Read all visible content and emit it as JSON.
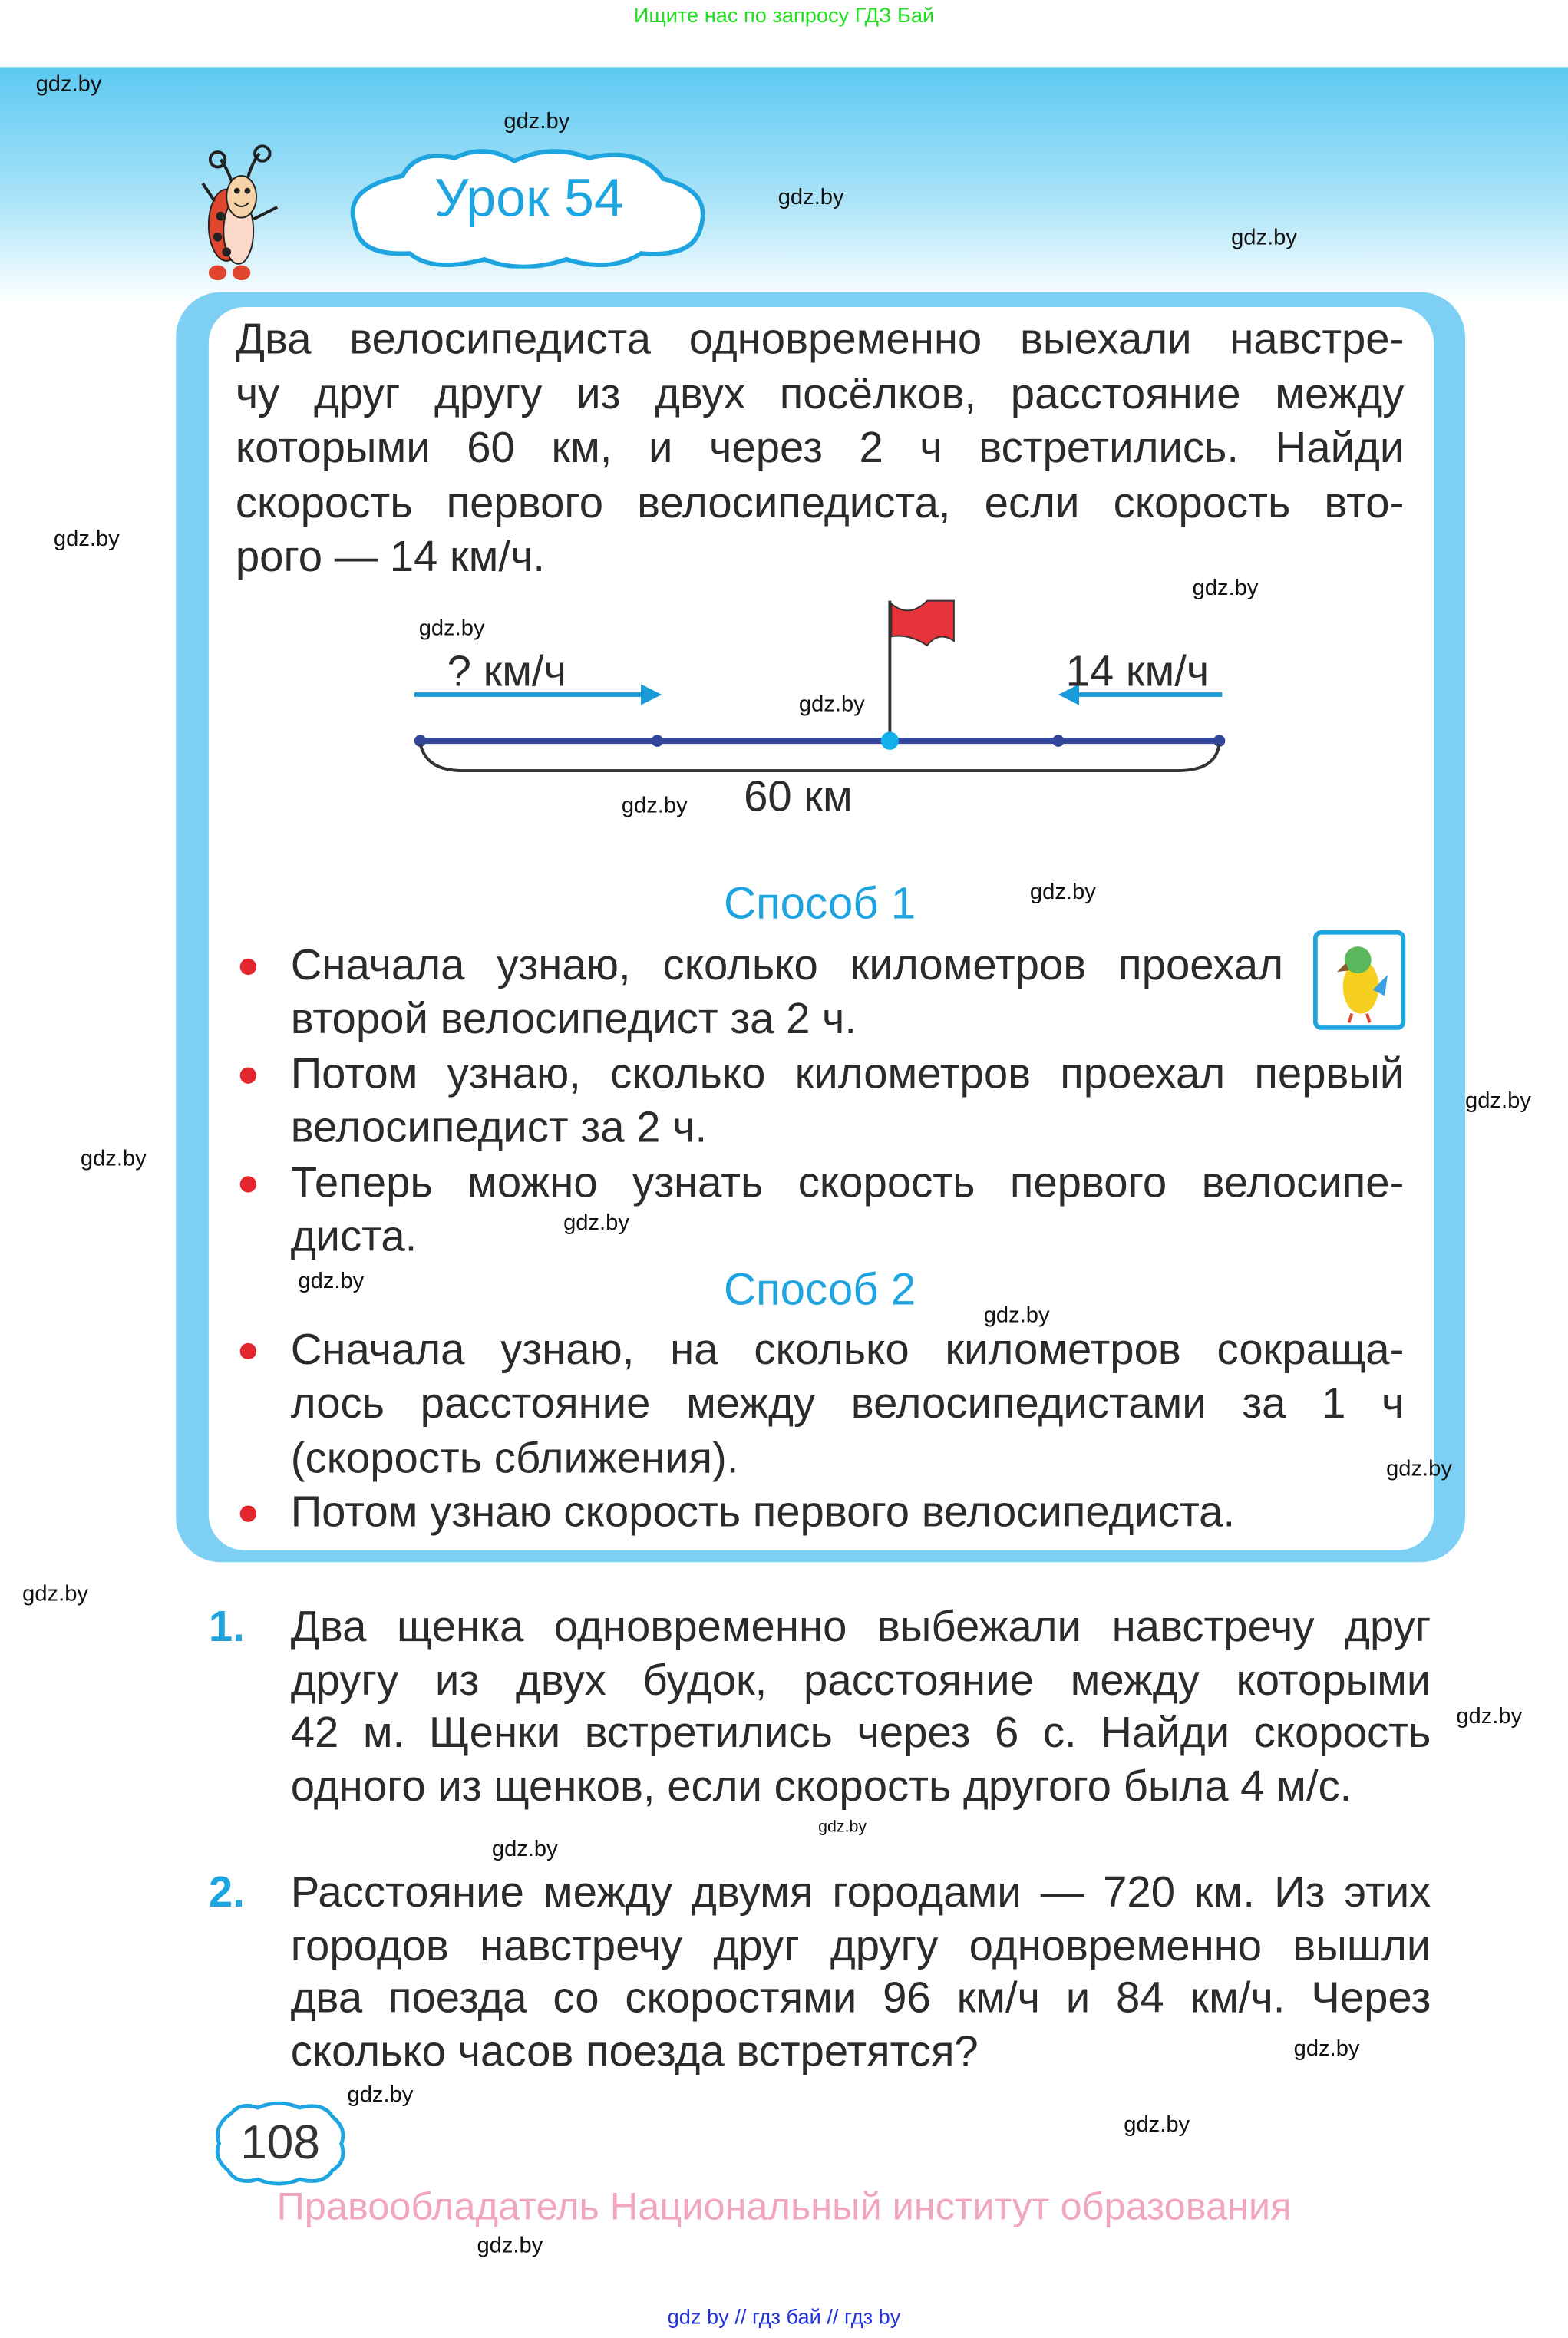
{
  "top_note": "Ищите нас по запросу ГДЗ Бай",
  "watermark": "gdz.by",
  "lesson_title": "Урок 54",
  "problem_lines": [
    "Два велосипедиста одновременно выехали навстре-",
    "чу друг другу из двух посёлков, расстояние между",
    "которыми 60 км, и через 2 ч встретились. Найди",
    "скорость первого велосипедиста, если скорость вто-",
    "рого — 14 км/ч."
  ],
  "diagram": {
    "left_speed": "? км/ч",
    "right_speed": "14 км/ч",
    "distance": "60 км",
    "colors": {
      "line": "#33479a",
      "arrow": "#1a9ad6",
      "meet_point": "#10b0ea",
      "flag": "#e8333a"
    }
  },
  "method1": {
    "title": "Способ 1",
    "lines": [
      {
        "text": "Сначала узнаю, сколько километров проехал",
        "bullet": true,
        "last": false,
        "narrow": true
      },
      {
        "text": "второй велосипедист за 2 ч.",
        "bullet": false,
        "last": true
      },
      {
        "text": "Потом узнаю, сколько километров проехал первый",
        "bullet": true,
        "last": false
      },
      {
        "text": "велосипедист за 2 ч.",
        "bullet": false,
        "last": true
      },
      {
        "text": "Теперь можно узнать скорость первого велосипе-",
        "bullet": true,
        "last": false
      },
      {
        "text": "диста.",
        "bullet": false,
        "last": true
      }
    ]
  },
  "method2": {
    "title": "Способ 2",
    "lines": [
      {
        "text": "Сначала узнаю, на сколько километров сокраща-",
        "bullet": true,
        "last": false
      },
      {
        "text": "лось расстояние между велосипедистами за 1 ч",
        "bullet": false,
        "last": false
      },
      {
        "text": "(скорость сближения).",
        "bullet": false,
        "last": true
      },
      {
        "text": "Потом узнаю скорость первого велосипедиста.",
        "bullet": true,
        "last": true
      }
    ]
  },
  "exercises": [
    {
      "number": "1.",
      "lines": [
        "Два щенка одновременно выбежали навстречу друг",
        "другу из двух будок, расстояние между которыми",
        "42 м. Щенки встретились через 6 с. Найди скорость",
        "одного из щенков, если скорость другого была 4 м/с."
      ]
    },
    {
      "number": "2.",
      "lines": [
        "Расстояние между двумя городами — 720 км. Из этих",
        "городов навстречу друг другу одновременно вышли",
        "два поезда со скоростями 96 км/ч и 84 км/ч. Через",
        "сколько часов поезда встретятся?"
      ]
    }
  ],
  "page_number": "108",
  "copyright": "Правообладатель Национальный институт образования",
  "footer_links": "gdz by  //  гдз бай  //  гдз by"
}
